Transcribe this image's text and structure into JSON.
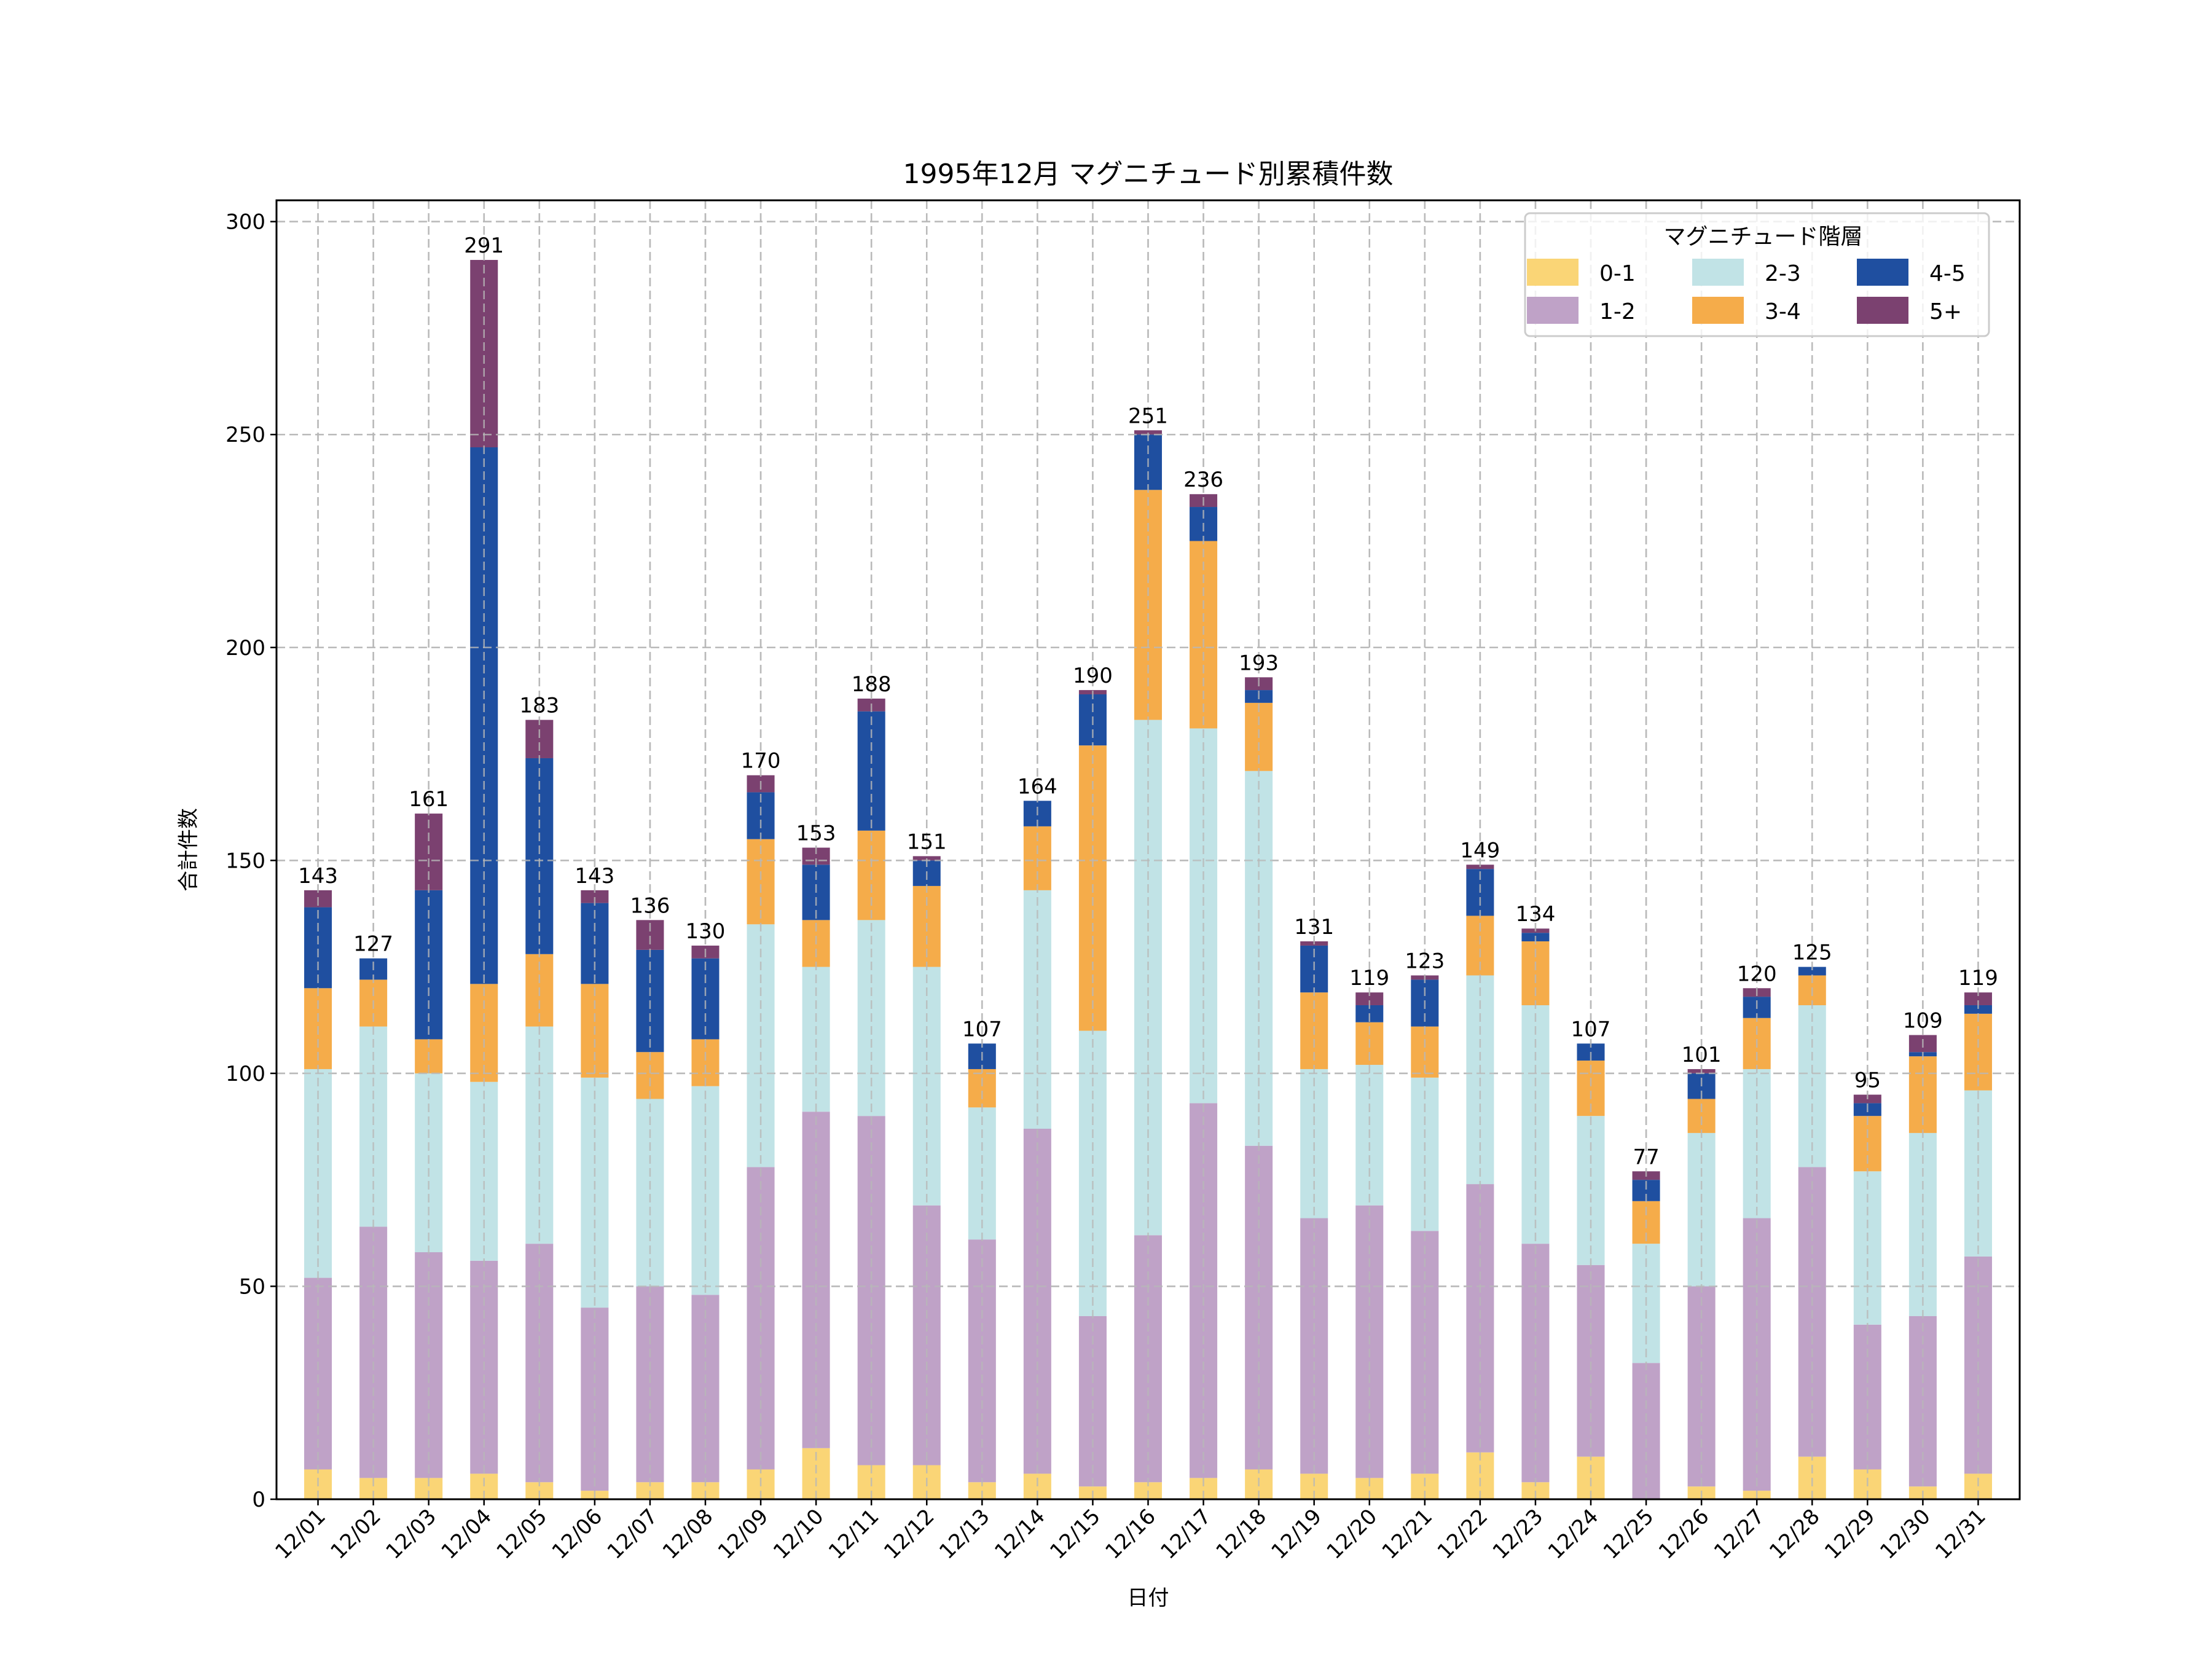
{
  "chart_data": {
    "type": "bar",
    "stacked": true,
    "title": "1995年12月 マグニチュード別累積件数",
    "xlabel": "日付",
    "ylabel": "合計件数",
    "ylim": [
      0,
      305
    ],
    "yticks": [
      0,
      50,
      100,
      150,
      200,
      250,
      300
    ],
    "grid": true,
    "legend": {
      "title": "マグニチュード階層",
      "placement": "top-right",
      "columns": 3
    },
    "categories": [
      "12/01",
      "12/02",
      "12/03",
      "12/04",
      "12/05",
      "12/06",
      "12/07",
      "12/08",
      "12/09",
      "12/10",
      "12/11",
      "12/12",
      "12/13",
      "12/14",
      "12/15",
      "12/16",
      "12/17",
      "12/18",
      "12/19",
      "12/20",
      "12/21",
      "12/22",
      "12/23",
      "12/24",
      "12/25",
      "12/26",
      "12/27",
      "12/28",
      "12/29",
      "12/30",
      "12/31"
    ],
    "series": [
      {
        "name": "0-1",
        "color": "#fad576",
        "values": [
          7,
          5,
          5,
          6,
          4,
          2,
          4,
          4,
          7,
          12,
          8,
          8,
          4,
          6,
          3,
          4,
          5,
          7,
          6,
          5,
          6,
          11,
          4,
          10,
          0,
          3,
          2,
          10,
          7,
          3,
          6
        ]
      },
      {
        "name": "1-2",
        "color": "#bfa2c7",
        "values": [
          45,
          59,
          53,
          50,
          56,
          43,
          46,
          44,
          71,
          79,
          82,
          61,
          57,
          81,
          40,
          58,
          88,
          76,
          60,
          64,
          57,
          63,
          56,
          45,
          32,
          47,
          64,
          68,
          34,
          40,
          51
        ]
      },
      {
        "name": "2-3",
        "color": "#c1e3e6",
        "values": [
          49,
          47,
          42,
          42,
          51,
          54,
          44,
          49,
          57,
          34,
          46,
          56,
          31,
          56,
          67,
          121,
          88,
          88,
          35,
          33,
          36,
          49,
          56,
          35,
          28,
          36,
          35,
          38,
          36,
          43,
          39
        ]
      },
      {
        "name": "3-4",
        "color": "#f5ac4a",
        "values": [
          19,
          11,
          8,
          23,
          17,
          22,
          11,
          11,
          20,
          11,
          21,
          19,
          9,
          15,
          67,
          54,
          44,
          16,
          18,
          10,
          12,
          14,
          15,
          13,
          10,
          8,
          12,
          7,
          13,
          18,
          18
        ]
      },
      {
        "name": "4-5",
        "color": "#1f4fa0",
        "values": [
          19,
          5,
          35,
          126,
          46,
          19,
          24,
          19,
          11,
          13,
          28,
          6,
          6,
          6,
          12,
          13,
          8,
          3,
          11,
          4,
          11,
          11,
          2,
          4,
          5,
          6,
          5,
          2,
          3,
          1,
          2
        ]
      },
      {
        "name": "5+",
        "color": "#7b4170",
        "values": [
          4,
          0,
          18,
          44,
          9,
          3,
          7,
          3,
          4,
          4,
          3,
          1,
          0,
          0,
          1,
          1,
          3,
          3,
          1,
          3,
          1,
          1,
          1,
          0,
          2,
          1,
          2,
          0,
          2,
          4,
          3
        ]
      }
    ],
    "totals": [
      143,
      127,
      161,
      291,
      183,
      143,
      136,
      130,
      170,
      153,
      188,
      151,
      107,
      164,
      190,
      251,
      236,
      193,
      131,
      119,
      123,
      149,
      134,
      107,
      77,
      101,
      120,
      125,
      95,
      109,
      119
    ]
  }
}
